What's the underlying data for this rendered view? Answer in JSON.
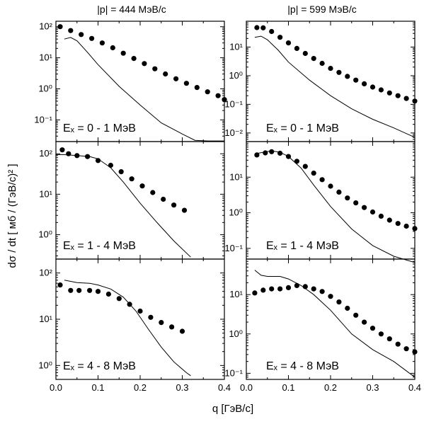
{
  "figure": {
    "xlabel": "q   [ГэВ/с]",
    "ylabel": "dσ / dt   [ мб / (ГэВ/с)² ]",
    "x_ticks": [
      "0.0",
      "0.1",
      "0.2",
      "0.3",
      "0.4"
    ]
  },
  "chart_data": [
    {
      "type": "scatter",
      "column_title": "|p| = 444 МэВ/с",
      "annotation": "Eₓ = 0 - 1 МэВ",
      "xlim": [
        0,
        0.4
      ],
      "ylim": [
        0.02,
        150
      ],
      "yscale": "log",
      "y_ticks": [
        {
          "v": 0.1,
          "label": "10⁻¹"
        },
        {
          "v": 1,
          "label": "10⁰"
        },
        {
          "v": 10,
          "label": "10¹"
        },
        {
          "v": 100,
          "label": "10²"
        }
      ],
      "series": [
        {
          "kind": "points",
          "x": [
            0.01,
            0.035,
            0.06,
            0.085,
            0.11,
            0.135,
            0.16,
            0.185,
            0.21,
            0.235,
            0.26,
            0.285,
            0.31,
            0.335,
            0.36,
            0.385,
            0.4
          ],
          "y": [
            100,
            75,
            56,
            42,
            30,
            21,
            14,
            9.5,
            6.5,
            4.4,
            3.0,
            2.1,
            1.5,
            1.1,
            0.8,
            0.6,
            0.45
          ]
        },
        {
          "kind": "line",
          "x": [
            0.02,
            0.035,
            0.05,
            0.075,
            0.1,
            0.15,
            0.2,
            0.25,
            0.3,
            0.33,
            0.36,
            0.38,
            0.4
          ],
          "y": [
            40,
            45,
            35,
            15,
            6,
            1.2,
            0.3,
            0.08,
            0.035,
            0.022,
            0.021,
            0.021,
            0.021
          ]
        }
      ]
    },
    {
      "type": "scatter",
      "column_title": "|p| = 599 МэВ/с",
      "annotation": "Eₓ = 0 - 1 МэВ",
      "xlim": [
        0,
        0.4
      ],
      "ylim": [
        0.005,
        80
      ],
      "yscale": "log",
      "y_ticks": [
        {
          "v": 0.01,
          "label": "10⁻²"
        },
        {
          "v": 0.1,
          "label": "10⁻¹"
        },
        {
          "v": 1,
          "label": "10⁰"
        },
        {
          "v": 10,
          "label": "10¹"
        }
      ],
      "series": [
        {
          "kind": "points",
          "x": [
            0.025,
            0.04,
            0.06,
            0.08,
            0.1,
            0.12,
            0.14,
            0.16,
            0.18,
            0.2,
            0.22,
            0.24,
            0.26,
            0.28,
            0.3,
            0.32,
            0.34,
            0.36,
            0.38,
            0.4
          ],
          "y": [
            48,
            47,
            35,
            22,
            14,
            9,
            6,
            4,
            2.7,
            1.8,
            1.3,
            0.95,
            0.7,
            0.52,
            0.4,
            0.32,
            0.25,
            0.2,
            0.16,
            0.13
          ]
        },
        {
          "kind": "line",
          "x": [
            0.02,
            0.035,
            0.05,
            0.075,
            0.1,
            0.15,
            0.2,
            0.25,
            0.3,
            0.35,
            0.4
          ],
          "y": [
            22,
            24,
            18,
            8,
            3,
            0.7,
            0.2,
            0.07,
            0.03,
            0.015,
            0.007
          ]
        }
      ]
    },
    {
      "type": "scatter",
      "annotation": "Eₓ = 1 - 4 МэВ",
      "xlim": [
        0,
        0.4
      ],
      "ylim": [
        0.25,
        200
      ],
      "yscale": "log",
      "y_ticks": [
        {
          "v": 1,
          "label": "10⁰"
        },
        {
          "v": 10,
          "label": "10¹"
        },
        {
          "v": 100,
          "label": "10²"
        }
      ],
      "series": [
        {
          "kind": "points",
          "x": [
            0.015,
            0.03,
            0.05,
            0.075,
            0.1,
            0.13,
            0.155,
            0.18,
            0.205,
            0.23,
            0.255,
            0.28,
            0.305
          ],
          "y": [
            125,
            100,
            90,
            85,
            68,
            52,
            36,
            24,
            16,
            11,
            7.5,
            5.4,
            4
          ]
        },
        {
          "kind": "line",
          "x": [
            0.0,
            0.02,
            0.05,
            0.08,
            0.1,
            0.13,
            0.16,
            0.2,
            0.24,
            0.28,
            0.32
          ],
          "y": [
            95,
            95,
            90,
            85,
            75,
            45,
            20,
            6,
            2,
            0.7,
            0.28
          ]
        }
      ]
    },
    {
      "type": "scatter",
      "annotation": "Eₓ = 1 - 4 МэВ",
      "xlim": [
        0,
        0.4
      ],
      "ylim": [
        0.05,
        100
      ],
      "yscale": "log",
      "y_ticks": [
        {
          "v": 0.1,
          "label": "10⁻¹"
        },
        {
          "v": 1,
          "label": "10⁰"
        },
        {
          "v": 10,
          "label": "10¹"
        }
      ],
      "series": [
        {
          "kind": "points",
          "x": [
            0.025,
            0.045,
            0.06,
            0.08,
            0.1,
            0.12,
            0.14,
            0.16,
            0.18,
            0.2,
            0.22,
            0.24,
            0.26,
            0.28,
            0.3,
            0.32,
            0.34,
            0.36,
            0.38,
            0.4
          ],
          "y": [
            42,
            48,
            52,
            47,
            38,
            28,
            20,
            13,
            8.5,
            5.6,
            3.8,
            2.6,
            1.9,
            1.4,
            1.05,
            0.8,
            0.62,
            0.5,
            0.42,
            0.36
          ]
        },
        {
          "kind": "line",
          "x": [
            0.02,
            0.04,
            0.06,
            0.08,
            0.1,
            0.13,
            0.16,
            0.2,
            0.25,
            0.3,
            0.35,
            0.4
          ],
          "y": [
            45,
            50,
            55,
            50,
            38,
            18,
            6,
            1.5,
            0.35,
            0.12,
            0.06,
            0.04
          ]
        }
      ]
    },
    {
      "type": "scatter",
      "annotation": "Eₓ = 4 - 8 МэВ",
      "xlim": [
        0,
        0.4
      ],
      "ylim": [
        0.5,
        200
      ],
      "yscale": "log",
      "y_ticks": [
        {
          "v": 1,
          "label": "10⁰"
        },
        {
          "v": 10,
          "label": "10¹"
        },
        {
          "v": 100,
          "label": "10²"
        }
      ],
      "series": [
        {
          "kind": "points",
          "x": [
            0.01,
            0.035,
            0.055,
            0.08,
            0.1,
            0.125,
            0.15,
            0.175,
            0.2,
            0.225,
            0.25,
            0.275,
            0.3
          ],
          "y": [
            55,
            42,
            42,
            42,
            40,
            35,
            28,
            21,
            15,
            11,
            8.5,
            6.8,
            5.5
          ]
        },
        {
          "kind": "line",
          "x": [
            0.02,
            0.05,
            0.08,
            0.1,
            0.13,
            0.16,
            0.19,
            0.22,
            0.25,
            0.28,
            0.31,
            0.32
          ],
          "y": [
            70,
            62,
            60,
            55,
            45,
            30,
            15,
            6,
            2.5,
            1.2,
            0.7,
            0.6
          ]
        }
      ]
    },
    {
      "type": "scatter",
      "annotation": "Eₓ = 4 - 8 МэВ",
      "xlim": [
        0,
        0.4
      ],
      "ylim": [
        0.07,
        80
      ],
      "yscale": "log",
      "y_ticks": [
        {
          "v": 0.1,
          "label": "10⁻¹"
        },
        {
          "v": 1,
          "label": "10⁰"
        },
        {
          "v": 10,
          "label": "10¹"
        }
      ],
      "series": [
        {
          "kind": "points",
          "x": [
            0.02,
            0.04,
            0.06,
            0.08,
            0.1,
            0.12,
            0.14,
            0.16,
            0.18,
            0.2,
            0.22,
            0.24,
            0.26,
            0.28,
            0.3,
            0.32,
            0.34,
            0.36,
            0.38,
            0.4
          ],
          "y": [
            11,
            13,
            14,
            14,
            15,
            17,
            16,
            14,
            12,
            9,
            6.5,
            4.5,
            3.0,
            2.0,
            1.4,
            1.0,
            0.75,
            0.55,
            0.42,
            0.35
          ]
        },
        {
          "kind": "line",
          "x": [
            0.02,
            0.035,
            0.05,
            0.08,
            0.1,
            0.13,
            0.16,
            0.2,
            0.25,
            0.3,
            0.35,
            0.4
          ],
          "y": [
            42,
            31,
            29,
            29,
            25,
            17,
            10,
            4,
            1,
            0.4,
            0.2,
            0.08
          ]
        }
      ]
    }
  ]
}
